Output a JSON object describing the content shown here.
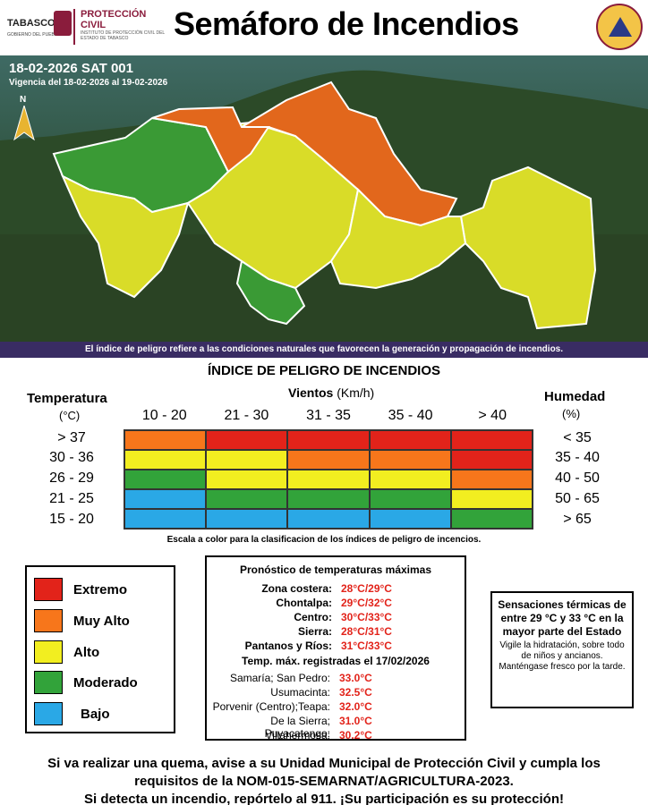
{
  "header": {
    "tabasco_word": "TABASCO",
    "tabasco_sub": "GOBIERNO DEL PUEBLO",
    "pc_word": "PROTECCIÓN CIVIL",
    "pc_sub": "INSTITUTO DE PROTECCIÓN CIVIL DEL ESTADO DE TABASCO",
    "title": "Semáforo de Incendios"
  },
  "map": {
    "bulletin_id": "18-02-2026 SAT 001",
    "validity": "Vigencia del 18-02-2026 al 19-02-2026",
    "north": "N",
    "note": "El índice de peligro refiere a las condiciones naturales que favorecen la generación y propagación de incendios."
  },
  "index": {
    "title": "ÍNDICE DE PELIGRO DE INCENDIOS",
    "temp_head": "Temperatura",
    "temp_unit": "(°C)",
    "wind_head_bold": "Vientos",
    "wind_head_unit": " (Km/h)",
    "hum_head": "Humedad",
    "hum_unit": "(%)",
    "wind_cols": [
      "10 - 20",
      "21 - 30",
      "31 - 35",
      "35 - 40",
      "> 40"
    ],
    "temp_rows": [
      "> 37",
      "30 - 36",
      "26 - 29",
      "21 - 25",
      "15 - 20"
    ],
    "hum_rows": [
      "< 35",
      "35 - 40",
      "40 - 50",
      "50 - 65",
      "> 65"
    ],
    "grid": [
      [
        "orange",
        "red",
        "red",
        "red",
        "red"
      ],
      [
        "yellow",
        "yellow",
        "orange",
        "orange",
        "red"
      ],
      [
        "green",
        "yellow",
        "yellow",
        "yellow",
        "orange"
      ],
      [
        "blue",
        "green",
        "green",
        "green",
        "yellow"
      ],
      [
        "blue",
        "blue",
        "blue",
        "blue",
        "green"
      ]
    ],
    "colors": {
      "red": "#e2231a",
      "orange": "#f7761b",
      "yellow": "#f2ee20",
      "green": "#32a33a",
      "blue": "#2aa8e6"
    },
    "scale_note": "Escala a color para la clasificacion de los índices de peligro de incencios."
  },
  "legend": [
    {
      "label": "Extremo",
      "color": "#e2231a"
    },
    {
      "label": "Muy Alto",
      "color": "#f7761b"
    },
    {
      "label": "Alto",
      "color": "#f2ee20"
    },
    {
      "label": "Moderado",
      "color": "#32a33a"
    },
    {
      "label": "Bajo",
      "color": "#2aa8e6"
    }
  ],
  "forecast": {
    "title": "Pronóstico de temperaturas máximas",
    "zones": [
      {
        "name": "Zona costera:",
        "value": "28°C/29°C"
      },
      {
        "name": "Chontalpa:",
        "value": "29°C/32°C"
      },
      {
        "name": "Centro:",
        "value": "30°C/33°C"
      },
      {
        "name": "Sierra:",
        "value": "28°C/31°C"
      },
      {
        "name": "Pantanos y Ríos:",
        "value": "31°C/33°C"
      }
    ],
    "max_title": "Temp. máx. registradas el 17/02/2026",
    "max_records": [
      {
        "name": "Samaría; San Pedro:",
        "value": "33.0°C"
      },
      {
        "name": "Usumacinta:",
        "value": "32.5°C"
      },
      {
        "name": "Porvenir (Centro);Teapa:",
        "value": "32.0°C"
      },
      {
        "name": "De la Sierra; Puyacatengo:",
        "value": "31.0°C"
      },
      {
        "name": "Villahermosa:",
        "value": "30.2°C"
      }
    ]
  },
  "sensations": {
    "title": "Sensaciones térmicas de entre 29 °C y 33 °C en la mayor parte del Estado",
    "body": "Vigile la hidratación, sobre todo de niños y ancianos. Manténgase fresco por la tarde."
  },
  "footer": {
    "line1": "Si va realizar una quema, avise a su Unidad Municipal de Protección Civil y cumpla los",
    "line2": "requisitos de la NOM-015-SEMARNAT/AGRICULTURA-2023.",
    "line3": "Si detecta un incendio, repórtelo al 911. ¡Su participación es su protección!"
  }
}
